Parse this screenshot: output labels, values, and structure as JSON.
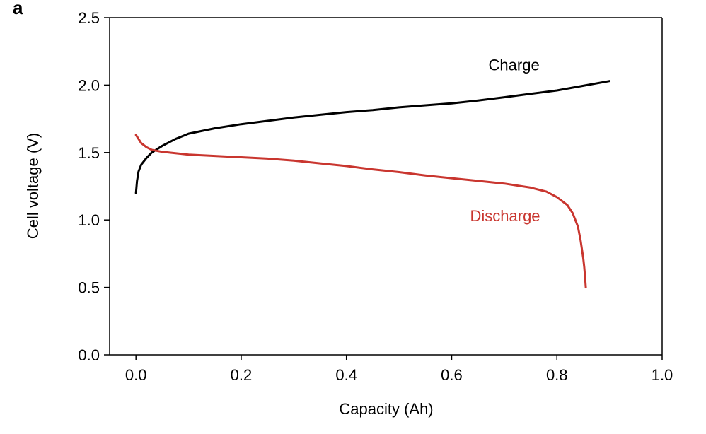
{
  "panel_label": "a",
  "chart_data": {
    "type": "line",
    "title": "",
    "xlabel": "Capacity (Ah)",
    "ylabel": "Cell voltage (V)",
    "xlim": [
      -0.05,
      1.0
    ],
    "ylim": [
      0.0,
      2.5
    ],
    "xticks": [
      0.0,
      0.2,
      0.4,
      0.6,
      0.8,
      1.0
    ],
    "xtick_labels": [
      "0.0",
      "0.2",
      "0.4",
      "0.6",
      "0.8",
      "1.0"
    ],
    "yticks": [
      0.0,
      0.5,
      1.0,
      1.5,
      2.0,
      2.5
    ],
    "ytick_labels": [
      "0.0",
      "0.5",
      "1.0",
      "1.5",
      "2.0",
      "2.5"
    ],
    "grid": false,
    "legend": "none",
    "series": [
      {
        "name": "Charge",
        "color": "#000000",
        "label_at": [
          0.67,
          2.11
        ],
        "x": [
          0.0,
          0.002,
          0.005,
          0.01,
          0.02,
          0.03,
          0.05,
          0.075,
          0.1,
          0.15,
          0.2,
          0.25,
          0.3,
          0.35,
          0.4,
          0.45,
          0.5,
          0.55,
          0.6,
          0.65,
          0.7,
          0.75,
          0.8,
          0.85,
          0.9
        ],
        "y": [
          1.2,
          1.29,
          1.36,
          1.41,
          1.46,
          1.5,
          1.55,
          1.6,
          1.64,
          1.68,
          1.71,
          1.735,
          1.76,
          1.78,
          1.8,
          1.815,
          1.835,
          1.85,
          1.865,
          1.885,
          1.91,
          1.935,
          1.96,
          1.995,
          2.03
        ]
      },
      {
        "name": "Discharge",
        "color": "#c9362f",
        "label_at": [
          0.635,
          0.99
        ],
        "x": [
          0.0,
          0.005,
          0.01,
          0.02,
          0.03,
          0.05,
          0.075,
          0.1,
          0.15,
          0.2,
          0.25,
          0.3,
          0.35,
          0.4,
          0.45,
          0.5,
          0.55,
          0.6,
          0.65,
          0.7,
          0.75,
          0.78,
          0.8,
          0.82,
          0.83,
          0.84,
          0.845,
          0.85,
          0.852,
          0.853,
          0.854,
          0.855
        ],
        "y": [
          1.63,
          1.6,
          1.57,
          1.54,
          1.52,
          1.505,
          1.495,
          1.485,
          1.475,
          1.465,
          1.455,
          1.44,
          1.42,
          1.4,
          1.375,
          1.355,
          1.33,
          1.31,
          1.29,
          1.27,
          1.24,
          1.21,
          1.17,
          1.11,
          1.05,
          0.95,
          0.85,
          0.72,
          0.65,
          0.6,
          0.55,
          0.5
        ]
      }
    ]
  }
}
